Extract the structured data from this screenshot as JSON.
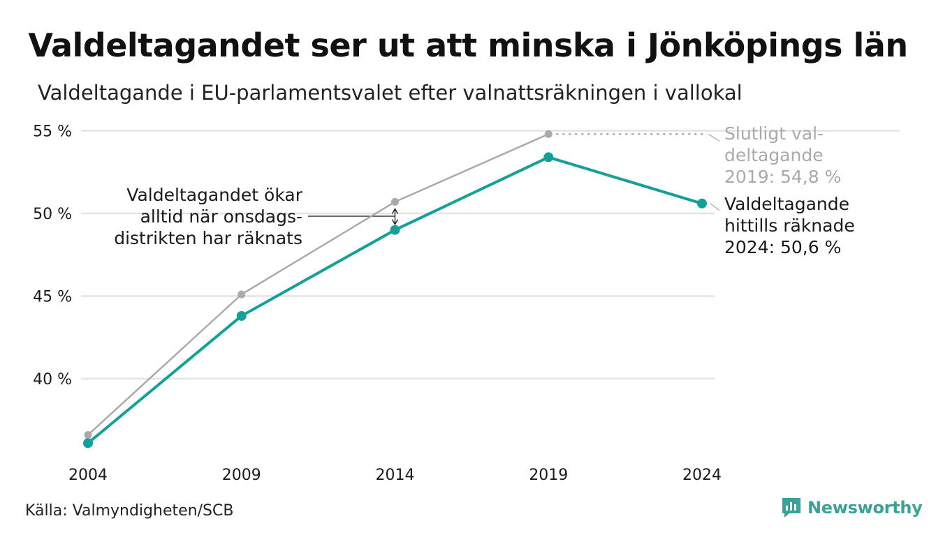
{
  "title": "Valdeltagandet ser ut att minska i Jönköpings län",
  "subtitle": "Valdeltagande i EU-parlamentsvalet efter valnattsräkningen i vallokal",
  "source": "Källa: Valmyndigheten/SCB",
  "brand": "Newsworthy",
  "colors": {
    "final": "#aaaaaa",
    "counted": "#12a099",
    "grid": "#e3e3e3"
  },
  "chart_data": {
    "type": "line",
    "x": [
      2004,
      2009,
      2014,
      2019,
      2024
    ],
    "xtick_labels": [
      "2004",
      "2009",
      "2014",
      "2019",
      "2024"
    ],
    "ytick_labels": [
      "40 %",
      "45 %",
      "50 %",
      "55 %"
    ],
    "yticks": [
      40,
      45,
      50,
      55
    ],
    "ylim": [
      35.5,
      55
    ],
    "grid": true,
    "series": [
      {
        "key": "final",
        "values": [
          36.6,
          45.1,
          50.7,
          54.8,
          null
        ]
      },
      {
        "key": "counted",
        "values": [
          36.1,
          43.8,
          49.0,
          53.4,
          50.6
        ]
      }
    ],
    "annotations": {
      "wednesday": [
        "Valdeltagandet ökar",
        "alltid när onsdags-",
        "distrikten har räknats"
      ],
      "final2019": [
        "Slutligt val-",
        "deltagande",
        "2019: 54,8 %"
      ],
      "counted2024": [
        "Valdeltagande",
        "hittills räknade",
        "2024: 50,6 %"
      ]
    }
  }
}
